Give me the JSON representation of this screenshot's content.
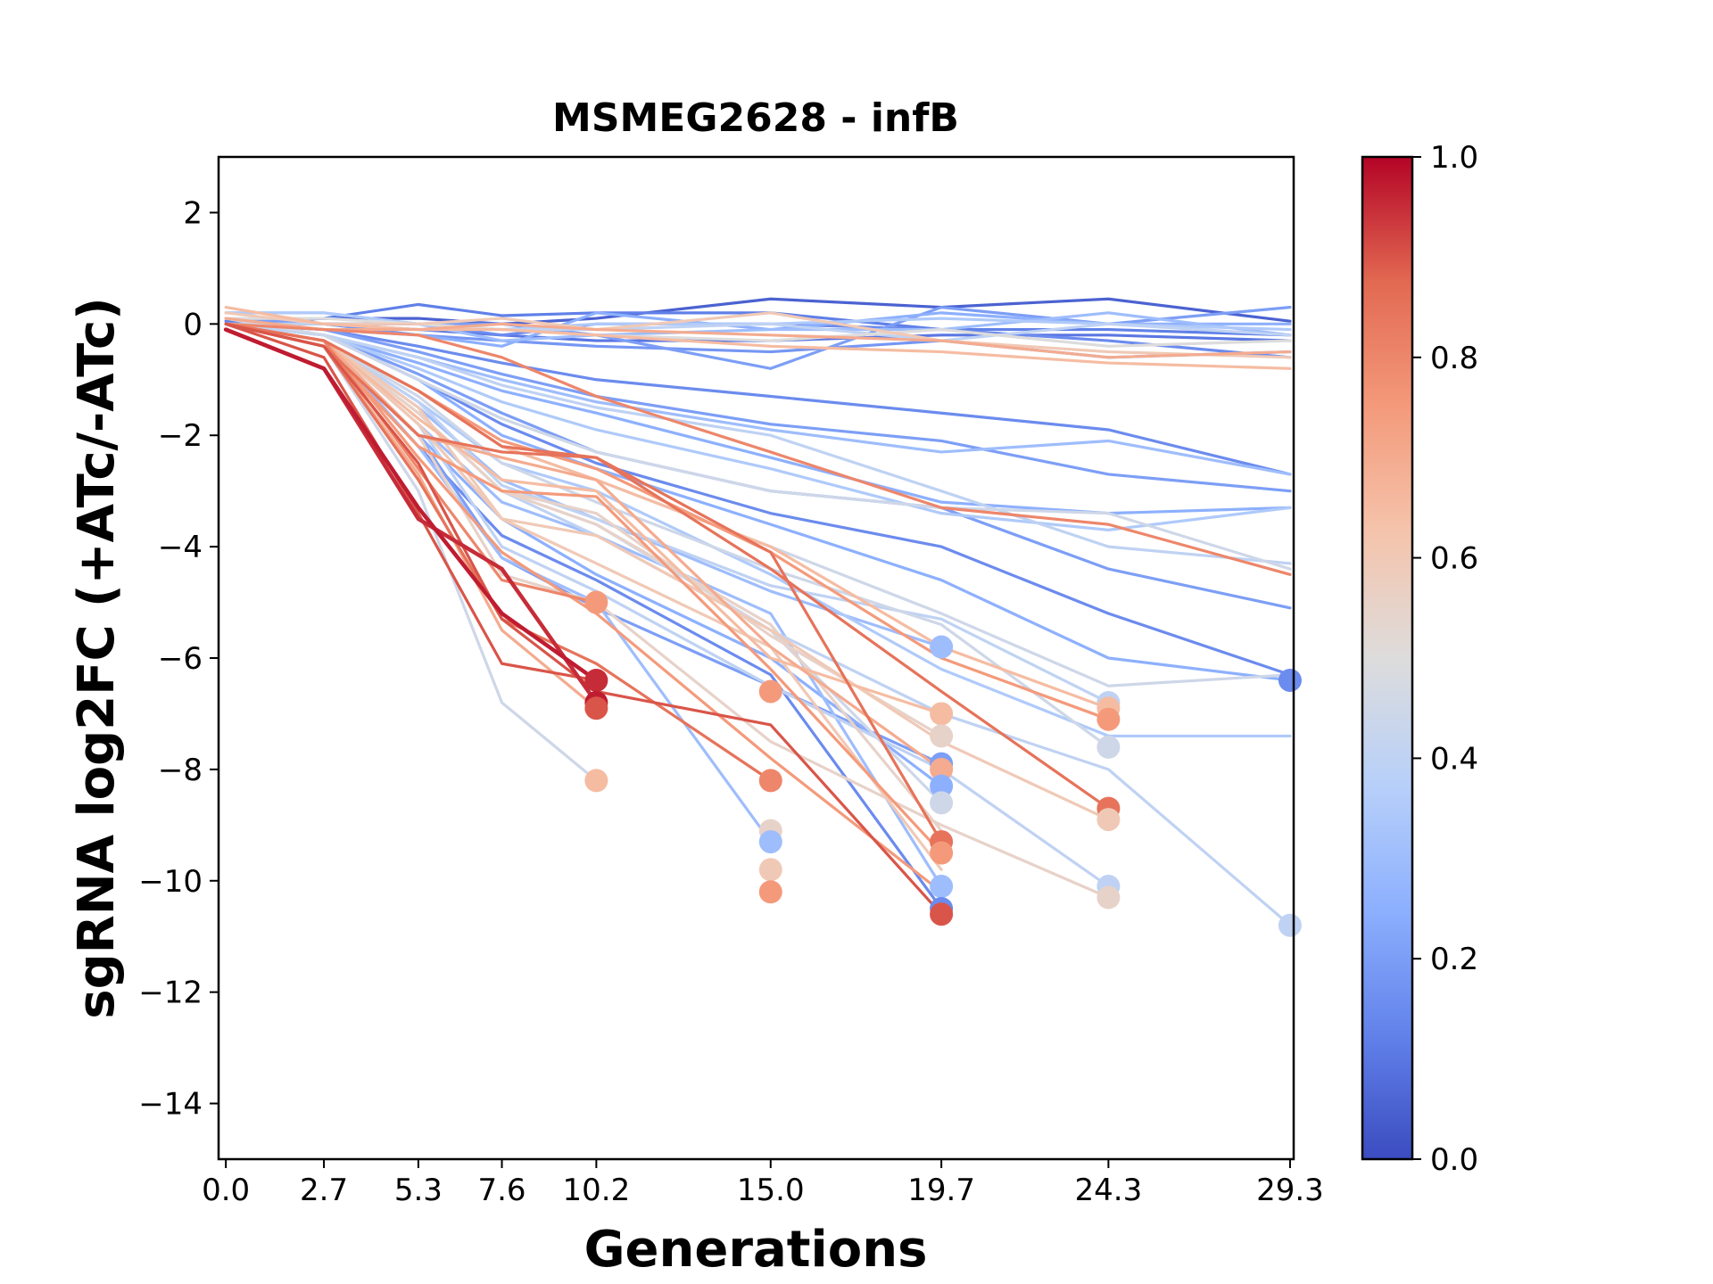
{
  "chart_data": {
    "type": "line",
    "title": "MSMEG2628 - infB",
    "xlabel": "Generations",
    "ylabel": "sgRNA log2FC (+ATc/-ATc)",
    "x_ticks": [
      0.0,
      2.7,
      5.3,
      7.6,
      10.2,
      15.0,
      19.7,
      24.3,
      29.3
    ],
    "x_tick_labels": [
      "0.0",
      "2.7",
      "5.3",
      "7.6",
      "10.2",
      "15.0",
      "19.7",
      "24.3",
      "29.3"
    ],
    "y_ticks": [
      2,
      0,
      -2,
      -4,
      -6,
      -8,
      -10,
      -12,
      -14
    ],
    "y_tick_labels": [
      "2",
      "0",
      "−2",
      "−4",
      "−6",
      "−8",
      "−10",
      "−12",
      "−14"
    ],
    "xlim": [
      -0.2,
      29.4
    ],
    "ylim": [
      -15,
      3
    ],
    "grid": false,
    "colorbar": {
      "range": [
        0.0,
        1.0
      ],
      "ticks": [
        0.0,
        0.2,
        0.4,
        0.6,
        0.8,
        1.0
      ],
      "tick_labels": [
        "0.0",
        "0.2",
        "0.4",
        "0.6",
        "0.8",
        "1.0"
      ],
      "colormap": "coolwarm",
      "stops": [
        "#3b4cc0",
        "#6282ea",
        "#8db0fe",
        "#b8d0f9",
        "#dddcdc",
        "#f5c4ac",
        "#f49a7b",
        "#e26952",
        "#b40426"
      ]
    },
    "series": [
      {
        "c": 0.05,
        "y": [
          0.0,
          0.1,
          0.1,
          0.0,
          0.1,
          0.45,
          0.3,
          0.45,
          0.05
        ]
      },
      {
        "c": 0.1,
        "y": [
          0.0,
          0.0,
          -0.1,
          -0.2,
          -0.3,
          -0.3,
          -0.2,
          -0.2,
          -0.3
        ]
      },
      {
        "c": 0.12,
        "y": [
          0.05,
          0.1,
          0.35,
          0.15,
          0.2,
          0.2,
          -0.1,
          -0.1,
          -0.2
        ]
      },
      {
        "c": 0.15,
        "y": [
          0.0,
          0.0,
          0.0,
          -0.2,
          0.0,
          0.0,
          -0.1,
          -0.3,
          -0.6
        ]
      },
      {
        "c": 0.18,
        "y": [
          0.1,
          0.0,
          -0.2,
          -0.3,
          -0.4,
          -0.5,
          -0.3,
          -0.6,
          -0.5
        ]
      },
      {
        "c": 0.2,
        "y": [
          0.1,
          0.0,
          0.0,
          0.0,
          -0.2,
          -0.8,
          0.3,
          0.0,
          0.3
        ]
      },
      {
        "c": 0.25,
        "y": [
          0.0,
          -0.1,
          -0.2,
          -0.4,
          0.2,
          -0.1,
          0.2,
          0.0,
          0.0
        ]
      },
      {
        "c": 0.3,
        "y": [
          0.2,
          0.2,
          0.0,
          -0.3,
          -0.2,
          -0.1,
          -0.1,
          0.2,
          -0.2
        ]
      },
      {
        "c": 0.35,
        "y": [
          0.2,
          0.2,
          0.0,
          -0.1,
          0.0,
          0.0,
          0.1,
          0.0,
          -0.1
        ]
      },
      {
        "c": 0.4,
        "y": [
          0.0,
          0.0,
          -0.1,
          -0.1,
          -0.1,
          0.0,
          -0.3,
          0.0,
          -0.2
        ]
      },
      {
        "c": 0.5,
        "y": [
          0.1,
          0.1,
          0.0,
          -0.1,
          -0.2,
          -0.3,
          -0.1,
          -0.4,
          -0.3
        ]
      },
      {
        "c": 0.6,
        "y": [
          0.2,
          0.0,
          0.0,
          0.1,
          -0.1,
          0.2,
          -0.3,
          -0.5,
          -0.6
        ]
      },
      {
        "c": 0.65,
        "y": [
          0.3,
          0.0,
          -0.1,
          -0.1,
          -0.2,
          -0.4,
          -0.5,
          -0.7,
          -0.8
        ]
      },
      {
        "c": 0.7,
        "y": [
          0.1,
          -0.1,
          -0.1,
          0.0,
          -0.1,
          -0.2,
          -0.3,
          -0.6,
          -0.5
        ]
      },
      {
        "c": 0.15,
        "y": [
          0.0,
          -0.1,
          -0.4,
          -0.7,
          -1.0,
          -1.3,
          -1.6,
          -1.9,
          -2.7
        ]
      },
      {
        "c": 0.2,
        "y": [
          0.0,
          -0.1,
          -0.5,
          -0.9,
          -1.3,
          -1.8,
          -2.1,
          -2.7,
          -3.0
        ]
      },
      {
        "c": 0.3,
        "y": [
          0.0,
          -0.2,
          -0.6,
          -1.0,
          -1.4,
          -1.9,
          -2.3,
          -2.1,
          -2.7
        ]
      },
      {
        "c": 0.25,
        "y": [
          0.0,
          -0.2,
          -0.7,
          -1.2,
          -1.6,
          -2.4,
          -3.2,
          -3.4,
          -3.3
        ]
      },
      {
        "c": 0.35,
        "y": [
          0.0,
          -0.2,
          -0.8,
          -1.4,
          -1.9,
          -2.6,
          -3.4,
          -3.7,
          -3.3
        ]
      },
      {
        "c": 0.4,
        "y": [
          0.0,
          -0.2,
          -0.6,
          -1.1,
          -1.5,
          -2.0,
          -3.0,
          -4.0,
          -4.3
        ]
      },
      {
        "c": 0.45,
        "y": [
          0.1,
          -0.2,
          -1.0,
          -1.7,
          -2.3,
          -3.0,
          -3.3,
          -3.4,
          -4.4
        ]
      },
      {
        "c": 0.8,
        "y": [
          0.0,
          -0.1,
          -0.2,
          -0.6,
          -1.3,
          -2.3,
          -3.3,
          -3.6,
          -4.5
        ]
      },
      {
        "c": 0.2,
        "y": [
          0.0,
          -0.2,
          -0.9,
          -1.6,
          -2.3,
          -3.0,
          -3.3,
          -4.4,
          -5.1
        ]
      },
      {
        "c": 0.15,
        "y": [
          0.0,
          -0.2,
          -1.0,
          -1.8,
          -2.5,
          -3.4,
          -4.0,
          -5.2,
          -6.3
        ]
      },
      {
        "c": 0.25,
        "y": [
          0.0,
          -0.2,
          -1.0,
          -2.0,
          -2.6,
          -3.6,
          -4.6,
          -6.0,
          -6.4
        ]
      },
      {
        "c": 0.45,
        "y": [
          0.0,
          -0.3,
          -1.2,
          -2.2,
          -2.8,
          -4.0,
          -5.2,
          -6.5,
          -6.3
        ]
      },
      {
        "c": 0.35,
        "y": [
          0.0,
          -0.3,
          -1.4,
          -2.5,
          -3.0,
          -4.5,
          -6.2,
          -7.4,
          -7.4
        ]
      },
      {
        "c": 0.4,
        "y": [
          0.0,
          -0.3,
          -1.6,
          -3.0,
          -3.8,
          -5.5,
          -7.0,
          -8.0,
          -10.8
        ]
      },
      {
        "c": 0.2,
        "y": [
          0.0,
          -0.3,
          -2.0,
          -4.2,
          -5.1,
          -6.5,
          -7.9
        ]
      },
      {
        "c": 0.25,
        "y": [
          0.0,
          -0.4,
          -2.0,
          -3.5,
          -4.5,
          -6.0,
          -8.3
        ]
      },
      {
        "c": 0.15,
        "y": [
          0.0,
          -0.4,
          -2.2,
          -3.8,
          -4.6,
          -6.3,
          -10.5
        ]
      },
      {
        "c": 0.3,
        "y": [
          0.0,
          -0.3,
          -1.8,
          -3.2,
          -3.8,
          -5.2,
          -10.1
        ]
      },
      {
        "c": 0.3,
        "y": [
          0.0,
          -0.3,
          -1.5,
          -2.8,
          -3.5,
          -4.8,
          -5.8
        ]
      },
      {
        "c": 0.45,
        "y": [
          0.0,
          -0.3,
          -1.6,
          -3.0,
          -3.6,
          -5.5,
          -8.6
        ]
      },
      {
        "c": 0.55,
        "y": [
          0.0,
          -0.3,
          -1.6,
          -3.0,
          -3.4,
          -5.6,
          -7.4
        ]
      },
      {
        "c": 0.65,
        "y": [
          0.0,
          -0.3,
          -1.7,
          -2.8,
          -3.0,
          -6.0,
          -7.0
        ]
      },
      {
        "c": 0.7,
        "y": [
          0.0,
          -0.3,
          -2.0,
          -2.4,
          -2.8,
          -5.8,
          -8.0
        ]
      },
      {
        "c": 0.75,
        "y": [
          0.0,
          -0.4,
          -2.2,
          -3.0,
          -3.1,
          -6.2,
          -9.5
        ]
      },
      {
        "c": 0.85,
        "y": [
          0.0,
          -0.4,
          -2.0,
          -2.3,
          -2.4,
          -4.1,
          -9.3
        ]
      },
      {
        "c": 0.9,
        "y": [
          0.0,
          -0.4,
          -2.5,
          -5.3,
          -6.6,
          -7.2,
          -10.6
        ]
      },
      {
        "c": 0.55,
        "y": [
          0.0,
          -0.3,
          -2.0,
          -4.5,
          -5.0,
          -7.5,
          -9.0,
          -10.3
        ]
      },
      {
        "c": 0.4,
        "y": [
          0.0,
          -0.3,
          -1.8,
          -4.0,
          -4.8,
          -6.5,
          -8.0,
          -10.1
        ]
      },
      {
        "c": 0.6,
        "y": [
          0.0,
          -0.3,
          -1.5,
          -3.5,
          -3.8,
          -5.5,
          -7.5,
          -8.9
        ]
      },
      {
        "c": 0.85,
        "y": [
          0.0,
          -0.3,
          -1.2,
          -2.2,
          -2.4,
          -4.4,
          -6.6,
          -8.7
        ]
      },
      {
        "c": 0.4,
        "y": [
          0.0,
          -0.3,
          -1.4,
          -2.9,
          -3.5,
          -4.7,
          -5.3,
          -6.8
        ]
      },
      {
        "c": 0.45,
        "y": [
          0.0,
          -0.3,
          -1.3,
          -2.5,
          -3.2,
          -4.4,
          -5.4,
          -7.6
        ]
      },
      {
        "c": 0.65,
        "y": [
          0.0,
          -0.3,
          -1.2,
          -2.2,
          -2.8,
          -4.0,
          -5.8,
          -6.9
        ]
      },
      {
        "c": 0.75,
        "y": [
          0.0,
          -0.3,
          -1.2,
          -2.1,
          -2.6,
          -4.1,
          -6.0,
          -7.1
        ]
      },
      {
        "c": 0.55,
        "y": [
          0.0,
          -0.3,
          -1.6,
          -3.0,
          -3.6,
          -5.4,
          -9.1
        ]
      },
      {
        "c": 0.6,
        "y": [
          0.0,
          -0.3,
          -1.8,
          -3.5,
          -4.3,
          -5.8,
          -9.8
        ]
      },
      {
        "c": 0.75,
        "y": [
          0.0,
          -0.3,
          -2.4,
          -4.1,
          -5.2,
          -7.8,
          -10.2
        ]
      },
      {
        "c": 0.3,
        "y": [
          0.0,
          -0.3,
          -2.2,
          -4.2,
          -5.0,
          -9.3
        ]
      },
      {
        "c": 0.85,
        "y": [
          0.0,
          -0.4,
          -2.8,
          -5.3,
          -6.1,
          -8.2
        ]
      },
      {
        "c": 0.45,
        "y": [
          0.0,
          -0.4,
          -3.0,
          -6.8,
          -8.2
        ]
      },
      {
        "c": 0.7,
        "y": [
          0.0,
          -0.4,
          -2.7,
          -5.5,
          -6.9
        ]
      },
      {
        "c": 0.8,
        "y": [
          0.0,
          -0.3,
          -2.6,
          -4.6,
          -5.0
        ]
      },
      {
        "c": 0.9,
        "y": [
          0.0,
          -0.6,
          -3.4,
          -6.1,
          -6.4
        ]
      },
      {
        "c": 0.95,
        "y": [
          -0.1,
          -0.8,
          -3.5,
          -4.4,
          -6.8
        ]
      },
      {
        "c": 0.97,
        "y": [
          -0.1,
          -0.8,
          -3.3,
          -5.2,
          -6.4
        ]
      }
    ],
    "end_markers": [
      {
        "x": 10.2,
        "y": -5.0,
        "c": 0.75
      },
      {
        "x": 10.2,
        "y": -6.4,
        "c": 0.95
      },
      {
        "x": 10.2,
        "y": -6.8,
        "c": 0.97
      },
      {
        "x": 10.2,
        "y": -6.9,
        "c": 0.9
      },
      {
        "x": 10.2,
        "y": -8.2,
        "c": 0.65
      },
      {
        "x": 15.0,
        "y": -6.6,
        "c": 0.75
      },
      {
        "x": 15.0,
        "y": -8.2,
        "c": 0.8
      },
      {
        "x": 15.0,
        "y": -9.1,
        "c": 0.55
      },
      {
        "x": 15.0,
        "y": -9.3,
        "c": 0.3
      },
      {
        "x": 15.0,
        "y": -9.8,
        "c": 0.6
      },
      {
        "x": 15.0,
        "y": -10.2,
        "c": 0.75
      },
      {
        "x": 19.7,
        "y": -5.8,
        "c": 0.3
      },
      {
        "x": 19.7,
        "y": -7.0,
        "c": 0.65
      },
      {
        "x": 19.7,
        "y": -7.4,
        "c": 0.55
      },
      {
        "x": 19.7,
        "y": -7.9,
        "c": 0.2
      },
      {
        "x": 19.7,
        "y": -8.0,
        "c": 0.7
      },
      {
        "x": 19.7,
        "y": -8.3,
        "c": 0.25
      },
      {
        "x": 19.7,
        "y": -8.6,
        "c": 0.45
      },
      {
        "x": 19.7,
        "y": -9.3,
        "c": 0.85
      },
      {
        "x": 19.7,
        "y": -9.5,
        "c": 0.75
      },
      {
        "x": 19.7,
        "y": -10.1,
        "c": 0.3
      },
      {
        "x": 19.7,
        "y": -10.5,
        "c": 0.15
      },
      {
        "x": 19.7,
        "y": -10.6,
        "c": 0.9
      },
      {
        "x": 24.3,
        "y": -6.8,
        "c": 0.4
      },
      {
        "x": 24.3,
        "y": -6.9,
        "c": 0.65
      },
      {
        "x": 24.3,
        "y": -7.1,
        "c": 0.75
      },
      {
        "x": 24.3,
        "y": -7.6,
        "c": 0.45
      },
      {
        "x": 24.3,
        "y": -8.7,
        "c": 0.85
      },
      {
        "x": 24.3,
        "y": -8.9,
        "c": 0.6
      },
      {
        "x": 24.3,
        "y": -10.1,
        "c": 0.4
      },
      {
        "x": 24.3,
        "y": -10.3,
        "c": 0.55
      },
      {
        "x": 29.3,
        "y": -6.4,
        "c": 0.15
      },
      {
        "x": 29.3,
        "y": -10.8,
        "c": 0.4
      }
    ]
  }
}
